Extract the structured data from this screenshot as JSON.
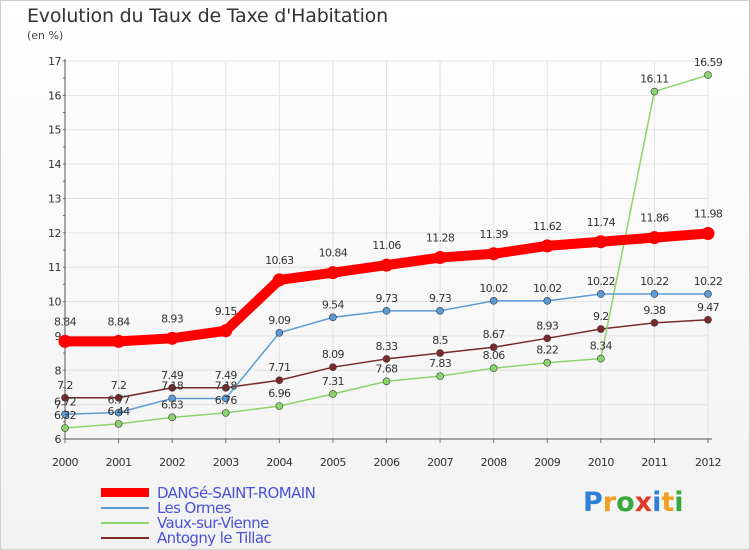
{
  "title": "Evolution du Taux de Taxe d'Habitation",
  "subtitle": "(en %)",
  "logo": {
    "letters": [
      {
        "ch": "P",
        "color": "#2e7fd6"
      },
      {
        "ch": "r",
        "color": "#f0a020"
      },
      {
        "ch": "o",
        "color": "#37a93c"
      },
      {
        "ch": "x",
        "color": "#e03a2a"
      },
      {
        "ch": "i",
        "color": "#2e7fd6"
      },
      {
        "ch": "t",
        "color": "#f0a020"
      },
      {
        "ch": "i",
        "color": "#37a93c"
      }
    ]
  },
  "chart_data": {
    "type": "line",
    "title": "Evolution du Taux de Taxe d'Habitation",
    "subtitle": "(en %)",
    "x": [
      "2000",
      "2001",
      "2002",
      "2003",
      "2004",
      "2005",
      "2006",
      "2007",
      "2008",
      "2009",
      "2010",
      "2011",
      "2012"
    ],
    "ylim": [
      6,
      17
    ],
    "yticks": [
      "6",
      "7",
      "8",
      "9",
      "10",
      "11",
      "12",
      "13",
      "14",
      "15",
      "16",
      "17"
    ],
    "grid": true,
    "legend_position": "bottom-left",
    "series": [
      {
        "name": "DANGé-SAINT-ROMAIN",
        "color": "#ff0000",
        "values": [
          8.84,
          8.84,
          8.93,
          9.15,
          10.63,
          10.84,
          11.06,
          11.28,
          11.39,
          11.62,
          11.74,
          11.86,
          11.98
        ],
        "labels": [
          "8.84",
          "8.84",
          "8.93",
          "9.15",
          "10.63",
          "10.84",
          "11.06",
          "11.28",
          "11.39",
          "11.62",
          "11.74",
          "11.86",
          "11.98"
        ]
      },
      {
        "name": "Les Ormes",
        "color": "#5b9bd5",
        "values": [
          6.72,
          6.77,
          7.18,
          7.18,
          9.09,
          9.54,
          9.73,
          9.73,
          10.02,
          10.02,
          10.22,
          10.22,
          10.22
        ],
        "labels": [
          "6.72",
          "6.77",
          "7.18",
          "7.18",
          "9.09",
          "9.54",
          "9.73",
          "9.73",
          "10.02",
          "10.02",
          "10.22",
          "10.22",
          "10.22"
        ]
      },
      {
        "name": "Vaux-sur-Vienne",
        "color": "#8ad46b",
        "values": [
          6.32,
          6.44,
          6.63,
          6.76,
          6.96,
          7.31,
          7.68,
          7.83,
          8.06,
          8.22,
          8.34,
          16.11,
          16.59
        ],
        "labels": [
          "6.32",
          "6.44",
          "6.63",
          "6.76",
          "6.96",
          "7.31",
          "7.68",
          "7.83",
          "8.06",
          "8.22",
          "8.34",
          "16.11",
          "16.59"
        ]
      },
      {
        "name": "Antogny le Tillac",
        "color": "#7a2a2a",
        "values": [
          7.2,
          7.2,
          7.49,
          7.49,
          7.71,
          8.09,
          8.33,
          8.5,
          8.67,
          8.93,
          9.2,
          9.38,
          9.47
        ],
        "labels": [
          "7.2",
          "7.2",
          "7.49",
          "7.49",
          "7.71",
          "8.09",
          "8.33",
          "8.5",
          "8.67",
          "8.93",
          "9.2",
          "9.38",
          "9.47"
        ]
      }
    ]
  }
}
